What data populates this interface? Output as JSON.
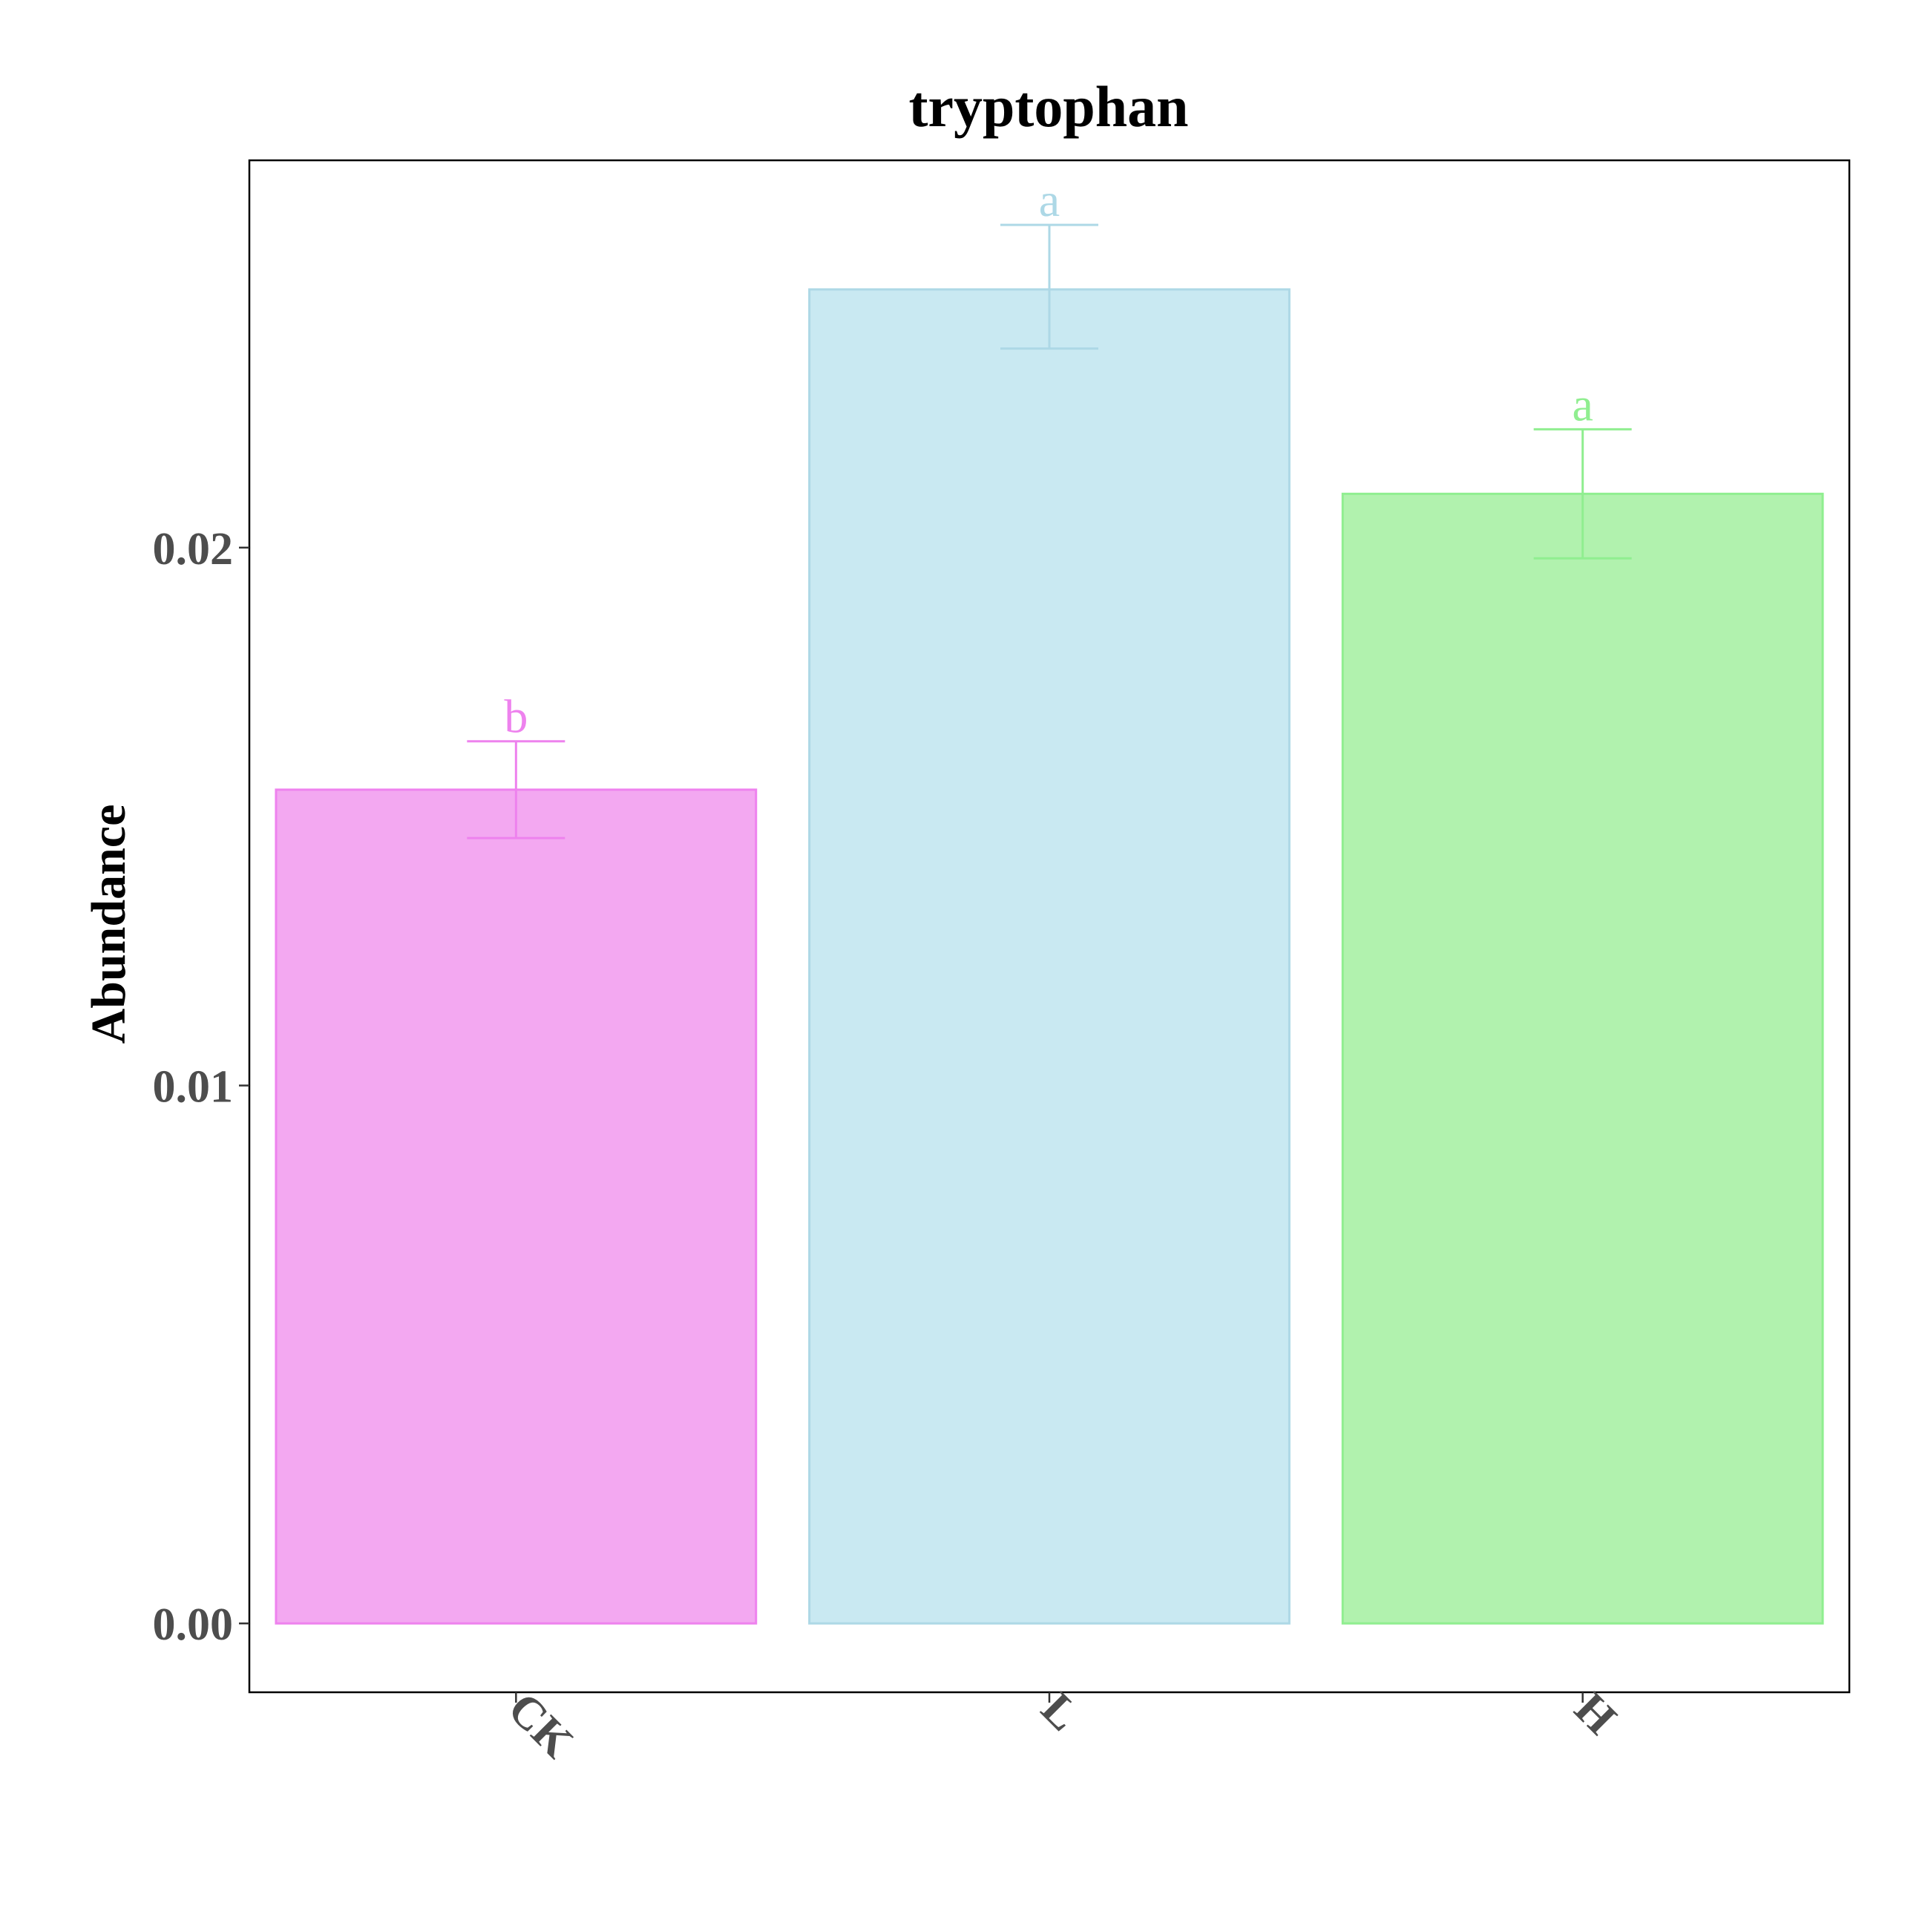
{
  "chart_data": {
    "type": "bar",
    "title": "tryptophan",
    "xlabel": "",
    "ylabel": "Abundance",
    "ylim": [
      -0.00128,
      0.0272
    ],
    "yticks": [
      0.0,
      0.01,
      0.02
    ],
    "ytick_labels": [
      "0.00",
      "0.01",
      "0.02"
    ],
    "categories": [
      "CK",
      "L",
      "H"
    ],
    "values": [
      0.0155,
      0.0248,
      0.021
    ],
    "error_low": [
      0.0146,
      0.0237,
      0.0198
    ],
    "error_high": [
      0.0164,
      0.026,
      0.0222
    ],
    "significance": [
      "b",
      "a",
      "a"
    ],
    "colors": {
      "fill": [
        "#f3a8f1",
        "#c9e9f2",
        "#b1f2ae"
      ],
      "stroke": [
        "#ee82ee",
        "#add8e6",
        "#90ee90"
      ]
    },
    "x_tick_rotation_deg": 45,
    "grid": false,
    "legend": "none"
  }
}
